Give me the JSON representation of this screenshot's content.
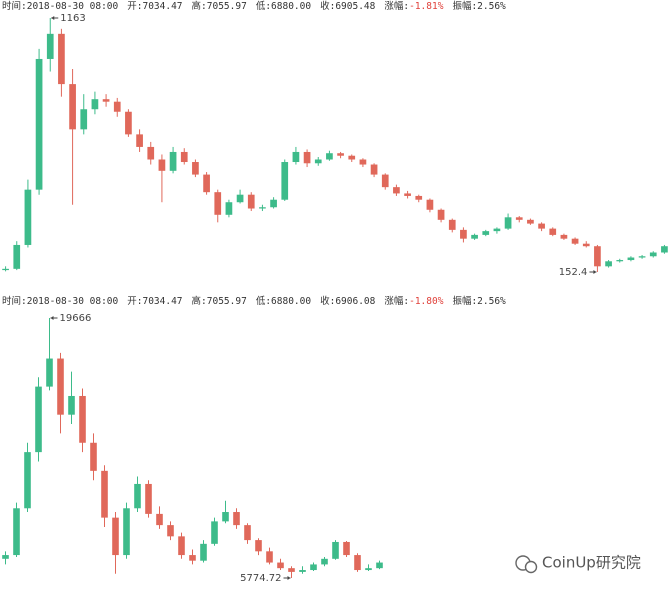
{
  "chart_data": [
    {
      "type": "candlestick",
      "header": [
        {
          "label": "时间:",
          "value": "2018-08-30 08:00"
        },
        {
          "label": "开:",
          "value": "7034.47"
        },
        {
          "label": "高:",
          "value": "7055.97"
        },
        {
          "label": "低:",
          "value": "6880.00"
        },
        {
          "label": "收:",
          "value": "6905.48"
        },
        {
          "label": "涨幅:",
          "value": "-1.81%",
          "color": "#e0403a"
        },
        {
          "label": "振幅:",
          "value": "2.56%"
        }
      ],
      "up_color": "#3dbb8a",
      "down_color": "#e0685a",
      "annotations": {
        "max": 1163,
        "min": 152.4
      },
      "ohlc": [
        [
          160,
          175,
          155,
          165
        ],
        [
          165,
          275,
          160,
          260
        ],
        [
          260,
          520,
          250,
          480
        ],
        [
          480,
          1040,
          460,
          1000
        ],
        [
          1000,
          1163,
          950,
          1100
        ],
        [
          1100,
          1120,
          850,
          900
        ],
        [
          900,
          960,
          420,
          720
        ],
        [
          720,
          860,
          700,
          800
        ],
        [
          800,
          870,
          780,
          840
        ],
        [
          840,
          860,
          810,
          830
        ],
        [
          830,
          845,
          770,
          790
        ],
        [
          790,
          800,
          690,
          700
        ],
        [
          700,
          720,
          630,
          650
        ],
        [
          650,
          670,
          580,
          600
        ],
        [
          600,
          620,
          430,
          555
        ],
        [
          555,
          650,
          545,
          630
        ],
        [
          630,
          645,
          580,
          590
        ],
        [
          590,
          600,
          530,
          540
        ],
        [
          540,
          550,
          460,
          470
        ],
        [
          470,
          480,
          350,
          380
        ],
        [
          380,
          440,
          370,
          430
        ],
        [
          430,
          480,
          425,
          460
        ],
        [
          460,
          470,
          395,
          405
        ],
        [
          405,
          420,
          395,
          410
        ],
        [
          410,
          450,
          405,
          440
        ],
        [
          440,
          600,
          435,
          590
        ],
        [
          590,
          650,
          580,
          630
        ],
        [
          630,
          640,
          570,
          585
        ],
        [
          585,
          610,
          575,
          600
        ],
        [
          600,
          635,
          595,
          625
        ],
        [
          625,
          630,
          605,
          615
        ],
        [
          615,
          620,
          590,
          600
        ],
        [
          600,
          605,
          570,
          580
        ],
        [
          580,
          585,
          530,
          540
        ],
        [
          540,
          545,
          480,
          490
        ],
        [
          490,
          500,
          455,
          465
        ],
        [
          465,
          475,
          445,
          455
        ],
        [
          455,
          460,
          430,
          440
        ],
        [
          440,
          445,
          390,
          400
        ],
        [
          400,
          405,
          350,
          360
        ],
        [
          360,
          365,
          310,
          320
        ],
        [
          320,
          330,
          270,
          285
        ],
        [
          285,
          305,
          280,
          300
        ],
        [
          300,
          320,
          295,
          315
        ],
        [
          315,
          330,
          305,
          325
        ],
        [
          325,
          385,
          320,
          370
        ],
        [
          370,
          375,
          350,
          360
        ],
        [
          360,
          365,
          340,
          345
        ],
        [
          345,
          350,
          315,
          325
        ],
        [
          325,
          330,
          295,
          300
        ],
        [
          300,
          305,
          280,
          285
        ],
        [
          285,
          290,
          260,
          265
        ],
        [
          265,
          275,
          250,
          255
        ],
        [
          255,
          260,
          152.4,
          175
        ],
        [
          175,
          200,
          170,
          195
        ],
        [
          195,
          205,
          190,
          200
        ],
        [
          200,
          215,
          195,
          210
        ],
        [
          210,
          220,
          205,
          215
        ],
        [
          215,
          235,
          210,
          230
        ],
        [
          230,
          260,
          225,
          255
        ]
      ]
    },
    {
      "type": "candlestick",
      "header": [
        {
          "label": "时间:",
          "value": "2018-08-30 08:00"
        },
        {
          "label": "开:",
          "value": "7034.47"
        },
        {
          "label": "高:",
          "value": "7055.97"
        },
        {
          "label": "低:",
          "value": "6880.00"
        },
        {
          "label": "收:",
          "value": "6906.08"
        },
        {
          "label": "涨幅:",
          "value": "-1.80%",
          "color": "#e0403a"
        },
        {
          "label": "振幅:",
          "value": "2.56%"
        }
      ],
      "up_color": "#3dbb8a",
      "down_color": "#e0685a",
      "annotations": {
        "max": 19666,
        "min": 5774.72
      },
      "ohlc": [
        [
          6800,
          7200,
          6500,
          7000
        ],
        [
          7000,
          9800,
          6900,
          9500
        ],
        [
          9500,
          13000,
          9300,
          12500
        ],
        [
          12500,
          16500,
          12000,
          16000
        ],
        [
          16000,
          19666,
          15800,
          17500
        ],
        [
          17500,
          17800,
          13500,
          14500
        ],
        [
          14500,
          16800,
          14000,
          15500
        ],
        [
          15500,
          15900,
          12500,
          13000
        ],
        [
          13000,
          13500,
          11000,
          11500
        ],
        [
          11500,
          11800,
          8500,
          9000
        ],
        [
          9000,
          9300,
          6000,
          7000
        ],
        [
          7000,
          9800,
          6800,
          9500
        ],
        [
          9500,
          11200,
          9300,
          10800
        ],
        [
          10800,
          11000,
          9000,
          9200
        ],
        [
          9200,
          9600,
          8400,
          8600
        ],
        [
          8600,
          8800,
          7800,
          8000
        ],
        [
          8000,
          8200,
          6800,
          7000
        ],
        [
          7000,
          7300,
          6500,
          6700
        ],
        [
          6700,
          7800,
          6600,
          7600
        ],
        [
          7600,
          9000,
          7500,
          8800
        ],
        [
          8800,
          9900,
          8700,
          9300
        ],
        [
          9300,
          9500,
          8400,
          8600
        ],
        [
          8600,
          8700,
          7600,
          7800
        ],
        [
          7800,
          7900,
          7000,
          7200
        ],
        [
          7200,
          7400,
          6500,
          6600
        ],
        [
          6600,
          6800,
          6200,
          6300
        ],
        [
          6300,
          6400,
          5774.72,
          6100
        ],
        [
          6100,
          6400,
          6000,
          6200
        ],
        [
          6200,
          6600,
          6150,
          6500
        ],
        [
          6500,
          6900,
          6400,
          6800
        ],
        [
          6800,
          7800,
          6750,
          7700
        ],
        [
          7700,
          7750,
          6900,
          7000
        ],
        [
          7000,
          7100,
          6100,
          6200
        ],
        [
          6200,
          6500,
          6150,
          6300
        ],
        [
          6300,
          6700,
          6250,
          6600
        ]
      ]
    }
  ],
  "watermark": "CoinUp研究院"
}
